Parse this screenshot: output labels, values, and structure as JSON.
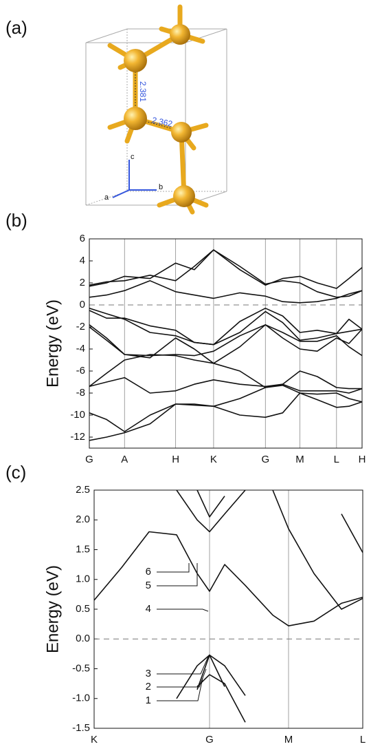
{
  "panel_labels": [
    "(a)",
    "(b)",
    "(c)"
  ],
  "structure": {
    "bond_lengths": [
      2.381,
      2.362
    ],
    "axes": [
      "a",
      "b",
      "c"
    ]
  },
  "chart_data": [
    {
      "type": "line",
      "ylabel": "Energy (eV)",
      "xlim": [
        0,
        395
      ],
      "ylim": [
        -13,
        6
      ],
      "xticks": [
        {
          "value": 0,
          "label": "G"
        },
        {
          "value": 51,
          "label": "A"
        },
        {
          "value": 125,
          "label": "H"
        },
        {
          "value": 180,
          "label": "K"
        },
        {
          "value": 255,
          "label": "G"
        },
        {
          "value": 305,
          "label": "M"
        },
        {
          "value": 358,
          "label": "L"
        },
        {
          "value": 395,
          "label": "H"
        }
      ],
      "yticks": [
        6,
        4,
        2,
        0,
        -2,
        -4,
        -6,
        -8,
        -10,
        -12
      ],
      "grid": true,
      "reference_line": 0,
      "x": [
        0,
        25,
        51,
        88,
        125,
        152,
        180,
        218,
        255,
        280,
        305,
        330,
        358,
        376,
        395
      ],
      "series": [
        {
          "color": "#111111",
          "values": [
            1.7,
            2.0,
            2.6,
            2.4,
            3.8,
            3.2,
            5.0,
            3.2,
            1.8,
            2.4,
            2.6,
            2.0,
            1.5,
            2.4,
            3.4
          ]
        },
        {
          "color": "#111111",
          "values": [
            1.8,
            2.1,
            2.2,
            2.7,
            2.2,
            3.5,
            5.0,
            3.5,
            1.9,
            2.2,
            2.0,
            1.2,
            0.7,
            0.8,
            1.3
          ]
        },
        {
          "color": "#111111",
          "values": [
            0.7,
            0.9,
            1.3,
            2.2,
            1.2,
            0.9,
            0.6,
            1.1,
            0.8,
            0.3,
            0.2,
            0.3,
            0.6,
            1.0,
            1.3
          ]
        },
        {
          "color": "#111111",
          "values": [
            -0.3,
            -0.8,
            -1.3,
            -2.5,
            -2.8,
            -3.4,
            -3.6,
            -1.5,
            -0.3,
            -1.0,
            -2.5,
            -2.3,
            -2.6,
            -1.3,
            -2.2
          ]
        },
        {
          "color": "#111111",
          "values": [
            -0.5,
            -1.2,
            -1.2,
            -1.9,
            -2.3,
            -3.4,
            -3.6,
            -2.5,
            -0.6,
            -1.6,
            -3.2,
            -3.0,
            -2.6,
            -2.4,
            -2.2
          ]
        },
        {
          "color": "#111111",
          "values": [
            -1.8,
            -3.0,
            -4.5,
            -4.6,
            -4.5,
            -4.6,
            -4.2,
            -2.8,
            -1.8,
            -2.5,
            -3.3,
            -3.3,
            -2.8,
            -3.8,
            -4.6
          ]
        },
        {
          "color": "#111111",
          "values": [
            -2.0,
            -3.2,
            -4.5,
            -4.8,
            -3.0,
            -4.0,
            -5.3,
            -3.8,
            -1.8,
            -3.0,
            -4.0,
            -4.2,
            -3.0,
            -3.5,
            -2.2
          ]
        },
        {
          "color": "#111111",
          "values": [
            -7.4,
            -6.2,
            -5.0,
            -4.5,
            -4.6,
            -5.0,
            -5.3,
            -6.0,
            -7.5,
            -7.2,
            -6.0,
            -6.5,
            -7.5,
            -7.6,
            -7.6
          ]
        },
        {
          "color": "#111111",
          "values": [
            -7.4,
            -7.0,
            -6.6,
            -8.0,
            -7.8,
            -7.2,
            -6.8,
            -7.2,
            -7.4,
            -7.2,
            -7.8,
            -7.8,
            -7.8,
            -8.0,
            -7.6
          ]
        },
        {
          "color": "#111111",
          "values": [
            -9.8,
            -10.4,
            -11.5,
            -10.0,
            -9.0,
            -9.0,
            -9.2,
            -8.5,
            -7.5,
            -7.3,
            -8.0,
            -8.1,
            -8.0,
            -8.5,
            -8.8
          ]
        },
        {
          "color": "#111111",
          "values": [
            -12.3,
            -12.0,
            -11.6,
            -10.8,
            -9.0,
            -9.1,
            -9.2,
            -10.0,
            -10.2,
            -9.8,
            -8.0,
            -8.6,
            -9.3,
            -9.2,
            -8.8
          ]
        }
      ]
    },
    {
      "type": "line",
      "ylabel": "Energy (eV)",
      "xlim": [
        0,
        391
      ],
      "ylim": [
        -1.5,
        2.5
      ],
      "xticks": [
        {
          "value": 0,
          "label": "K"
        },
        {
          "value": 168,
          "label": "G"
        },
        {
          "value": 283,
          "label": "M"
        },
        {
          "value": 391,
          "label": "L"
        }
      ],
      "yticks": [
        2.5,
        {
          "value": 2,
          "label": "2.0"
        },
        1.5,
        {
          "value": 1,
          "label": "1.0"
        },
        0.5,
        {
          "value": 0,
          "label": "0.0"
        },
        -0.5,
        {
          "value": -1,
          "label": "-1.0"
        },
        -1.5
      ],
      "grid": true,
      "reference_line": 0,
      "annotations": [
        "1",
        "2",
        "3",
        "4",
        "5",
        "6"
      ],
      "x": [
        0,
        40,
        80,
        120,
        150,
        168,
        190,
        220,
        260,
        283,
        320,
        360,
        391
      ],
      "series": [
        {
          "color": "#111111",
          "values": [
            0.65,
            1.2,
            1.8,
            1.75,
            1.1,
            0.8,
            1.25,
            0.9,
            0.4,
            0.22,
            0.3,
            0.6,
            0.7
          ]
        },
        {
          "color": "#111111",
          "values": [
            null,
            null,
            null,
            2.5,
            2.0,
            1.8,
            2.1,
            2.5,
            null,
            null,
            null,
            null,
            null
          ]
        },
        {
          "color": "#111111",
          "values": [
            null,
            null,
            null,
            null,
            2.5,
            2.05,
            2.4,
            null,
            null,
            null,
            null,
            null,
            null
          ]
        },
        {
          "color": "#111111",
          "values": [
            null,
            null,
            null,
            null,
            null,
            null,
            null,
            null,
            2.5,
            1.85,
            1.1,
            0.5,
            0.68
          ]
        },
        {
          "color": "#111111",
          "values": [
            null,
            null,
            null,
            null,
            null,
            null,
            null,
            null,
            null,
            null,
            null,
            2.1,
            1.45
          ]
        },
        {
          "color": "#111111",
          "values": [
            null,
            null,
            null,
            -1.0,
            -0.45,
            -0.27,
            -0.45,
            -0.95,
            null,
            null,
            null,
            null,
            null
          ]
        },
        {
          "color": "#111111",
          "values": [
            null,
            null,
            null,
            null,
            -0.85,
            -0.27,
            -0.8,
            null,
            null,
            null,
            null,
            null,
            null
          ]
        },
        {
          "color": "#111111",
          "values": [
            null,
            null,
            null,
            null,
            -0.8,
            -0.6,
            -0.75,
            -1.4,
            null,
            null,
            null,
            null,
            null
          ]
        }
      ]
    }
  ]
}
